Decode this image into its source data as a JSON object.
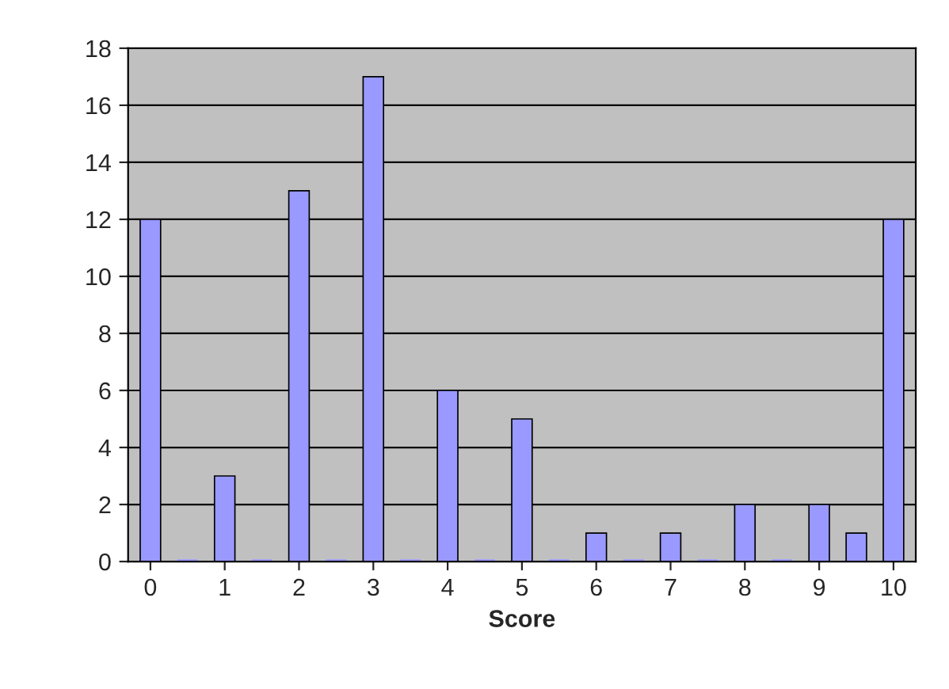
{
  "chart_data": {
    "type": "bar",
    "xlabel": "Score",
    "categories": [
      "0",
      null,
      "1",
      null,
      "2",
      null,
      "3",
      null,
      "4",
      null,
      "5",
      null,
      "6",
      null,
      "7",
      null,
      "8",
      null,
      "9",
      null,
      "10"
    ],
    "values": [
      12,
      0,
      3,
      0,
      13,
      0,
      17,
      0,
      6,
      0,
      5,
      0,
      1,
      0,
      1,
      0,
      2,
      0,
      2,
      1,
      12
    ],
    "color": "#9999ff",
    "ylim": [
      0,
      18
    ],
    "yticks": [
      0,
      2,
      4,
      6,
      8,
      10,
      12,
      14,
      16,
      18
    ],
    "grid": "y",
    "legend": false
  }
}
